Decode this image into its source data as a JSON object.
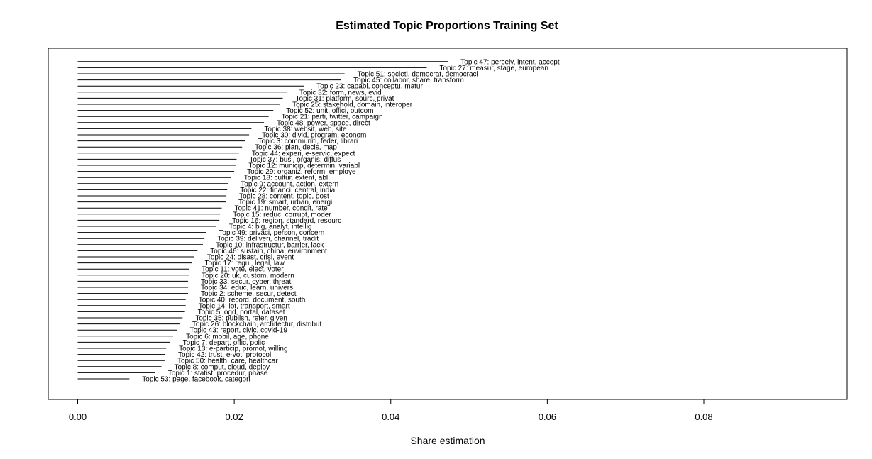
{
  "chart_data": {
    "type": "bar",
    "orientation": "horizontal",
    "title": "Estimated Topic Proportions Training Set",
    "xlabel": "Share estimation",
    "ylabel": "",
    "xlim": [
      0,
      0.098
    ],
    "xticks": [
      "0.00",
      "0.02",
      "0.04",
      "0.06",
      "0.08"
    ],
    "grid": false,
    "categories": [
      "Topic 47: perceiv, intent, accept",
      "Topic 27: measur, stage, european",
      "Topic 51: societi, democrat, democraci",
      "Topic 45: collabor, share, transform",
      "Topic 23: capabl, conceptu, matur",
      "Topic 32: form, news, evid",
      "Topic 31: platform, sourc, privat",
      "Topic 25: stakehold, domain, interoper",
      "Topic 52: unit, offici, outcom",
      "Topic 21: parti, twitter, campaign",
      "Topic 48: power, space, direct",
      "Topic 38: websit, web, site",
      "Topic 30: divid, program, econom",
      "Topic 3: communiti, feder, librari",
      "Topic 36: plan, decis, map",
      "Topic 44: experi, e-servic, expect",
      "Topic 37: busi, organis, diffus",
      "Topic 12: municip, determin, variabl",
      "Topic 29: organiz, reform, employe",
      "Topic 18: cultur, extent, abl",
      "Topic 9: account, action, extern",
      "Topic 22: financi, central, india",
      "Topic 28: content, topic, post",
      "Topic 19: smart, urban, energi",
      "Topic 41: number, condit, rate",
      "Topic 15: reduc, corrupt, moder",
      "Topic 16: region, standard, resourc",
      "Topic 4: big, analyt, intellig",
      "Topic 49: privaci, person, concern",
      "Topic 39: deliveri, channel, tradit",
      "Topic 10: infrastructur, barrier, lack",
      "Topic 46: sustain, china, environment",
      "Topic 24: disast, crisi, event",
      "Topic 17: regul, legal, law",
      "Topic 11: vote, elect, voter",
      "Topic 20: uk, custom, modern",
      "Topic 33: secur, cyber, threat",
      "Topic 34: educ, learn, univers",
      "Topic 2: scheme, secur, detect",
      "Topic 40: record, document, south",
      "Topic 14: iot, transport, smart",
      "Topic 5: ogd, portal, dataset",
      "Topic 35: publish, refer, given",
      "Topic 26: blockchain, architectur, distribut",
      "Topic 43: report, civic, covid-19",
      "Topic 6: mobil, age, phone",
      "Topic 7: depart, offic, polic",
      "Topic 13: e-particip, promot, willing",
      "Topic 42: trust, e-vot, protocol",
      "Topic 50: health, care, healthcar",
      "Topic 8: comput, cloud, deploy",
      "Topic 1: statist, procedur, phase",
      "Topic 53: page, facebook, categori"
    ],
    "values": [
      0.0473,
      0.0446,
      0.0341,
      0.0336,
      0.0289,
      0.0267,
      0.0262,
      0.0258,
      0.025,
      0.0244,
      0.0238,
      0.0222,
      0.0219,
      0.0214,
      0.021,
      0.0206,
      0.0203,
      0.0202,
      0.02,
      0.0196,
      0.0192,
      0.0191,
      0.019,
      0.0189,
      0.0184,
      0.0182,
      0.0181,
      0.0177,
      0.0164,
      0.0162,
      0.016,
      0.0153,
      0.0149,
      0.0146,
      0.0142,
      0.0142,
      0.0141,
      0.0141,
      0.0141,
      0.0138,
      0.0138,
      0.0137,
      0.0134,
      0.013,
      0.0127,
      0.0122,
      0.0118,
      0.0113,
      0.0112,
      0.0111,
      0.0107,
      0.0099,
      0.0066
    ]
  }
}
